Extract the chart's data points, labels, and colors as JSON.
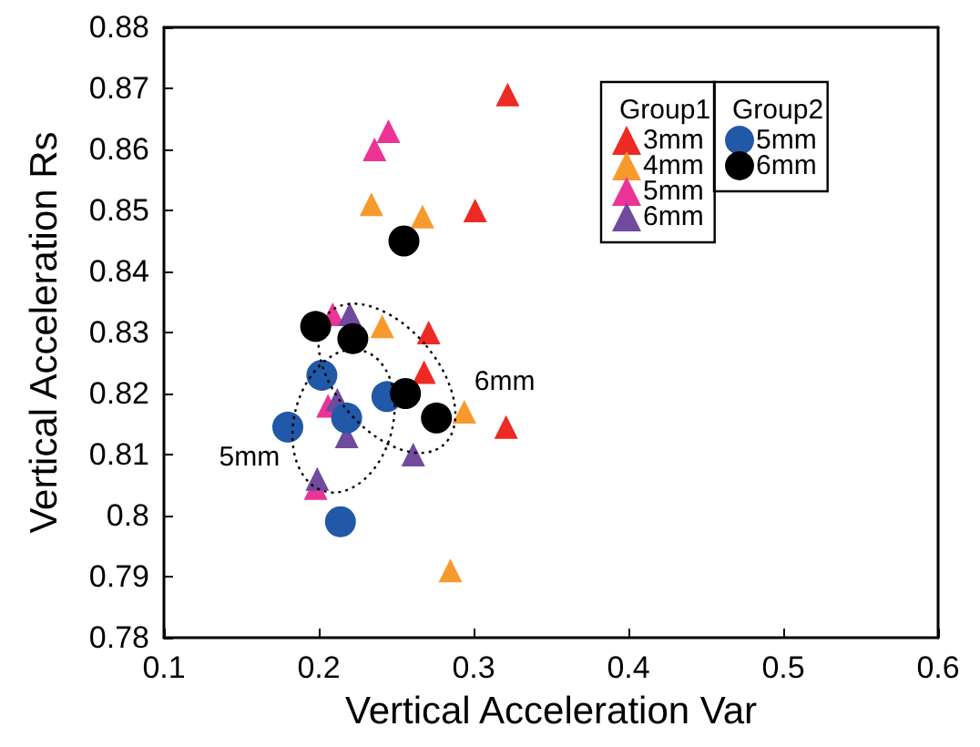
{
  "chart_data": {
    "type": "scatter",
    "xlabel": "Vertical Acceleration Var",
    "ylabel": "Vertical Acceleration Rs",
    "xlim": [
      0.1,
      0.6
    ],
    "xticks": [
      0.1,
      0.2,
      0.3,
      0.4,
      0.5,
      0.6
    ],
    "ylim": [
      0.78,
      0.88
    ],
    "yticks": [
      0.78,
      0.79,
      0.8,
      0.81,
      0.82,
      0.83,
      0.84,
      0.85,
      0.86,
      0.87,
      0.88
    ],
    "grid": false,
    "legend": "top right",
    "legend_title": [
      "Group1",
      "Group2"
    ],
    "annotations": [
      "6mm",
      "5mm"
    ],
    "series": [
      {
        "name": "3mm",
        "color": "#ee2a24",
        "marker": "triangle",
        "x": [
          0.322,
          0.301,
          0.271,
          0.268,
          0.321
        ],
        "values": [
          0.869,
          0.85,
          0.83,
          0.8235,
          0.8145
        ]
      },
      {
        "name": "4mm",
        "color": "#f79a2e",
        "marker": "triangle",
        "x": [
          0.234,
          0.267,
          0.241,
          0.294,
          0.285
        ],
        "values": [
          0.851,
          0.849,
          0.831,
          0.817,
          0.791
        ]
      },
      {
        "name": "5mm",
        "color": "#ec3396",
        "marker": "triangle",
        "x": [
          0.245,
          0.236,
          0.209,
          0.206,
          0.198
        ],
        "values": [
          0.863,
          0.86,
          0.833,
          0.818,
          0.8045
        ]
      },
      {
        "name": "6mm",
        "color": "#6f4a9e",
        "marker": "triangle",
        "x": [
          0.22,
          0.212,
          0.218,
          0.261,
          0.199
        ],
        "values": [
          0.833,
          0.819,
          0.813,
          0.81,
          0.806
        ]
      },
      {
        "name": "5mm",
        "color": "#2158a8",
        "marker": "circle",
        "x": [
          0.202,
          0.18,
          0.218,
          0.244,
          0.214
        ],
        "values": [
          0.823,
          0.8145,
          0.816,
          0.8195,
          0.799
        ]
      },
      {
        "name": "6mm",
        "color": "#000000",
        "marker": "circle",
        "x": [
          0.255,
          0.198,
          0.222,
          0.256,
          0.276
        ],
        "values": [
          0.845,
          0.831,
          0.829,
          0.82,
          0.816
        ]
      }
    ]
  }
}
